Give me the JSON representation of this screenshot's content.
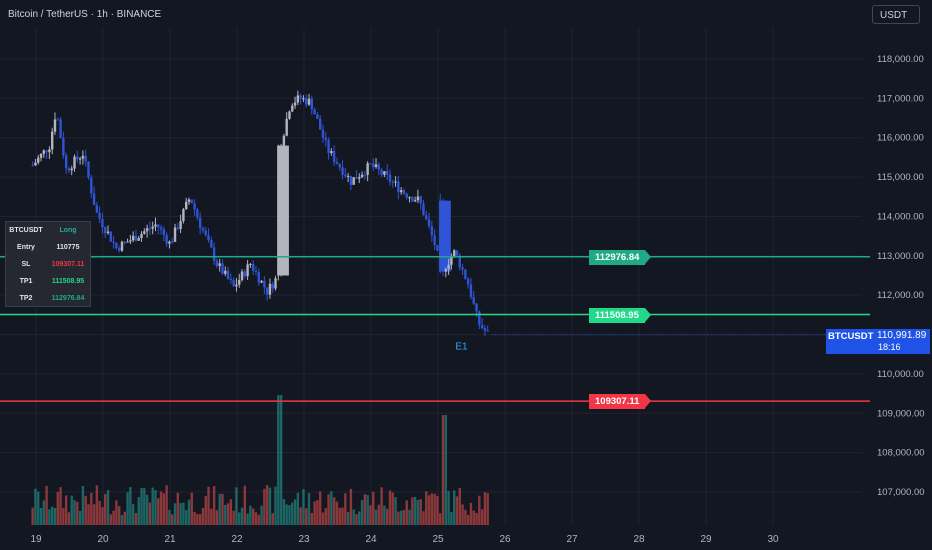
{
  "header": {
    "title": "Bitcoin / TetherUS · 1h · BINANCE",
    "currency": "USDT"
  },
  "price_axis": {
    "labels": [
      "118,000.00",
      "117,000.00",
      "116,000.00",
      "115,000.00",
      "114,000.00",
      "113,000.00",
      "112,000.00",
      "111,000.00",
      "110,000.00",
      "109,000.00",
      "108,000.00",
      "107,000.00"
    ]
  },
  "time_axis": {
    "labels": [
      "19",
      "20",
      "21",
      "22",
      "23",
      "24",
      "25",
      "26",
      "27",
      "28",
      "29",
      "30"
    ]
  },
  "trade_table": {
    "rows": [
      {
        "key": "BTCUSDT",
        "value": "Long",
        "color": "#26a69a"
      },
      {
        "key": "Entry",
        "value": "110775",
        "color": "#e0e3eb"
      },
      {
        "key": "SL",
        "value": "109307.11",
        "color": "#f23645"
      },
      {
        "key": "TP1",
        "value": "111508.95",
        "color": "#22d98a"
      },
      {
        "key": "TP2",
        "value": "112976.84",
        "color": "#1fa985"
      }
    ]
  },
  "levels": [
    {
      "label": "112976.84",
      "price": 112976.84,
      "color": "#1fa985"
    },
    {
      "label": "111508.95",
      "price": 111508.95,
      "color": "#22d98a"
    },
    {
      "label": "109307.11",
      "price": 109307.11,
      "color": "#f23645"
    }
  ],
  "entry_marker": {
    "label": "E1",
    "color": "#2ea7ff"
  },
  "last_price": {
    "symbol": "BTCUSDT",
    "price": "110,991.89",
    "countdown": "18:16"
  },
  "colors": {
    "background": "#131722",
    "up": "#b2b5be",
    "down": "#2f54d6",
    "vol_up": "#26a69a",
    "vol_down": "#ef5350",
    "grid": "#1f2330"
  },
  "chart_data": {
    "type": "candlestick",
    "series": "BTCUSDT 1h",
    "ylim": [
      106500,
      118800
    ],
    "x_ticks": [
      "19",
      "20",
      "21",
      "22",
      "23",
      "24",
      "25",
      "26",
      "27",
      "28",
      "29",
      "30"
    ],
    "anchors": [
      {
        "day": "18.95",
        "close": 115300
      },
      {
        "day": "19.2",
        "close": 115800
      },
      {
        "day": "19.3",
        "close": 116700
      },
      {
        "day": "19.45",
        "close": 115200
      },
      {
        "day": "19.7",
        "close": 115600
      },
      {
        "day": "19.9",
        "close": 114100
      },
      {
        "day": "20.2",
        "close": 113200
      },
      {
        "day": "20.5",
        "close": 113500
      },
      {
        "day": "20.8",
        "close": 113800
      },
      {
        "day": "21.0",
        "close": 113300
      },
      {
        "day": "21.3",
        "close": 114500
      },
      {
        "day": "21.45",
        "close": 113800
      },
      {
        "day": "21.7",
        "close": 112800
      },
      {
        "day": "21.95",
        "close": 112200
      },
      {
        "day": "22.2",
        "close": 112800
      },
      {
        "day": "22.45",
        "close": 112100
      },
      {
        "day": "22.62",
        "close": 112500
      },
      {
        "day": "22.65",
        "close": 115800
      },
      {
        "day": "22.8",
        "close": 116900
      },
      {
        "day": "22.95",
        "close": 117000
      },
      {
        "day": "23.1",
        "close": 116900
      },
      {
        "day": "23.35",
        "close": 115700
      },
      {
        "day": "23.7",
        "close": 114900
      },
      {
        "day": "24.0",
        "close": 115300
      },
      {
        "day": "24.3",
        "close": 114900
      },
      {
        "day": "24.5",
        "close": 114600
      },
      {
        "day": "24.72",
        "close": 114400
      },
      {
        "day": "24.95",
        "close": 113300
      },
      {
        "day": "25.05",
        "close": 112600
      },
      {
        "day": "25.25",
        "close": 113100
      },
      {
        "day": "25.45",
        "close": 112300
      },
      {
        "day": "25.6",
        "close": 111300
      },
      {
        "day": "25.75",
        "close": 111000
      }
    ],
    "last_price": 110991.89
  }
}
